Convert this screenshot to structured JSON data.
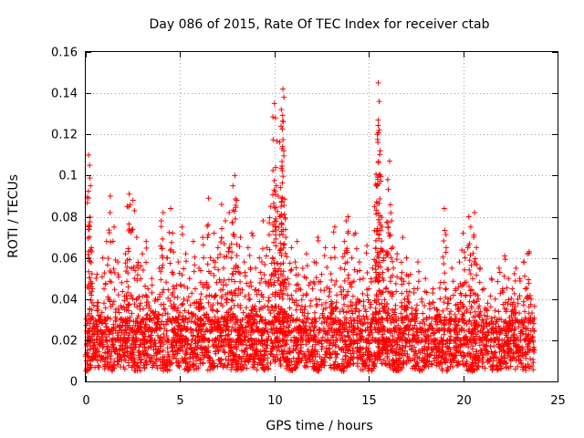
{
  "chart_data": {
    "type": "scatter",
    "title": "Day 086 of 2015, Rate Of TEC Index for receiver ctab",
    "xlabel": "GPS time / hours",
    "ylabel": "ROTI / TECUs",
    "xlim": [
      0,
      25
    ],
    "ylim": [
      0,
      0.16
    ],
    "xticks": [
      0,
      5,
      10,
      15,
      20,
      25
    ],
    "xtick_labels": [
      "0",
      "5",
      "10",
      "15",
      "20",
      "25"
    ],
    "yticks": [
      0,
      0.02,
      0.04,
      0.06,
      0.08,
      0.1,
      0.12,
      0.14,
      0.16
    ],
    "ytick_labels": [
      "0",
      "0.02",
      "0.04",
      "0.06",
      "0.08",
      "0.1",
      "0.12",
      "0.14",
      "0.16"
    ],
    "grid": true,
    "marker": "+",
    "color": "#ff0000",
    "series": [
      {
        "name": "ROTI",
        "points": [
          [
            0.05,
            0.01
          ],
          [
            0.1,
            0.032
          ],
          [
            0.15,
            0.11
          ],
          [
            0.2,
            0.105
          ],
          [
            0.25,
            0.095
          ],
          [
            0.3,
            0.065
          ],
          [
            0.35,
            0.045
          ],
          [
            0.4,
            0.028
          ],
          [
            0.5,
            0.015
          ],
          [
            0.6,
            0.052
          ],
          [
            0.7,
            0.03
          ],
          [
            0.8,
            0.018
          ],
          [
            0.9,
            0.06
          ],
          [
            1.0,
            0.024
          ],
          [
            1.1,
            0.068
          ],
          [
            1.2,
            0.04
          ],
          [
            1.3,
            0.09
          ],
          [
            1.4,
            0.02
          ],
          [
            1.5,
            0.075
          ],
          [
            1.6,
            0.035
          ],
          [
            1.7,
            0.058
          ],
          [
            1.8,
            0.015
          ],
          [
            1.9,
            0.048
          ],
          [
            2.0,
            0.03
          ],
          [
            2.1,
            0.062
          ],
          [
            2.2,
            0.085
          ],
          [
            2.3,
            0.091
          ],
          [
            2.4,
            0.042
          ],
          [
            2.5,
            0.088
          ],
          [
            2.6,
            0.025
          ],
          [
            2.7,
            0.07
          ],
          [
            2.8,
            0.055
          ],
          [
            2.9,
            0.038
          ],
          [
            3.0,
            0.062
          ],
          [
            3.1,
            0.022
          ],
          [
            3.2,
            0.068
          ],
          [
            3.3,
            0.045
          ],
          [
            3.4,
            0.03
          ],
          [
            3.5,
            0.05
          ],
          [
            3.6,
            0.018
          ],
          [
            3.7,
            0.04
          ],
          [
            3.8,
            0.026
          ],
          [
            3.9,
            0.055
          ],
          [
            4.0,
            0.078
          ],
          [
            4.1,
            0.082
          ],
          [
            4.2,
            0.035
          ],
          [
            4.3,
            0.06
          ],
          [
            4.4,
            0.02
          ],
          [
            4.5,
            0.084
          ],
          [
            4.6,
            0.072
          ],
          [
            4.7,
            0.045
          ],
          [
            4.8,
            0.03
          ],
          [
            4.9,
            0.058
          ],
          [
            5.0,
            0.025
          ],
          [
            5.1,
            0.075
          ],
          [
            5.2,
            0.04
          ],
          [
            5.3,
            0.062
          ],
          [
            5.4,
            0.018
          ],
          [
            5.5,
            0.05
          ],
          [
            5.6,
            0.033
          ],
          [
            5.7,
            0.068
          ],
          [
            5.8,
            0.045
          ],
          [
            5.9,
            0.022
          ],
          [
            6.0,
            0.055
          ],
          [
            6.1,
            0.038
          ],
          [
            6.2,
            0.07
          ],
          [
            6.3,
            0.028
          ],
          [
            6.4,
            0.048
          ],
          [
            6.5,
            0.089
          ],
          [
            6.6,
            0.06
          ],
          [
            6.7,
            0.035
          ],
          [
            6.8,
            0.072
          ],
          [
            6.9,
            0.042
          ],
          [
            7.0,
            0.065
          ],
          [
            7.1,
            0.025
          ],
          [
            7.2,
            0.086
          ],
          [
            7.3,
            0.055
          ],
          [
            7.4,
            0.078
          ],
          [
            7.5,
            0.04
          ],
          [
            7.6,
            0.082
          ],
          [
            7.7,
            0.06
          ],
          [
            7.8,
            0.095
          ],
          [
            7.9,
            0.1
          ],
          [
            8.0,
            0.088
          ],
          [
            8.1,
            0.045
          ],
          [
            8.2,
            0.07
          ],
          [
            8.3,
            0.03
          ],
          [
            8.4,
            0.058
          ],
          [
            8.5,
            0.022
          ],
          [
            8.6,
            0.065
          ],
          [
            8.7,
            0.04
          ],
          [
            8.8,
            0.072
          ],
          [
            8.9,
            0.035
          ],
          [
            9.0,
            0.055
          ],
          [
            9.1,
            0.025
          ],
          [
            9.2,
            0.06
          ],
          [
            9.3,
            0.042
          ],
          [
            9.4,
            0.078
          ],
          [
            9.5,
            0.03
          ],
          [
            9.6,
            0.065
          ],
          [
            9.7,
            0.048
          ],
          [
            9.8,
            0.085
          ],
          [
            9.9,
            0.06
          ],
          [
            10.0,
            0.135
          ],
          [
            10.05,
            0.128
          ],
          [
            10.1,
            0.095
          ],
          [
            10.2,
            0.09
          ],
          [
            10.3,
            0.08
          ],
          [
            10.35,
            0.124
          ],
          [
            10.4,
            0.113
          ],
          [
            10.45,
            0.142
          ],
          [
            10.5,
            0.138
          ],
          [
            10.6,
            0.07
          ],
          [
            10.7,
            0.05
          ],
          [
            10.8,
            0.04
          ],
          [
            10.9,
            0.065
          ],
          [
            11.0,
            0.03
          ],
          [
            11.1,
            0.058
          ],
          [
            11.2,
            0.068
          ],
          [
            11.3,
            0.045
          ],
          [
            11.4,
            0.025
          ],
          [
            11.5,
            0.055
          ],
          [
            11.6,
            0.035
          ],
          [
            11.7,
            0.062
          ],
          [
            11.8,
            0.02
          ],
          [
            11.9,
            0.048
          ],
          [
            12.0,
            0.03
          ],
          [
            12.1,
            0.058
          ],
          [
            12.2,
            0.04
          ],
          [
            12.3,
            0.07
          ],
          [
            12.4,
            0.025
          ],
          [
            12.5,
            0.052
          ],
          [
            12.6,
            0.035
          ],
          [
            12.7,
            0.065
          ],
          [
            12.8,
            0.02
          ],
          [
            12.9,
            0.045
          ],
          [
            13.0,
            0.06
          ],
          [
            13.1,
            0.03
          ],
          [
            13.2,
            0.075
          ],
          [
            13.3,
            0.042
          ],
          [
            13.4,
            0.025
          ],
          [
            13.5,
            0.055
          ],
          [
            13.6,
            0.035
          ],
          [
            13.7,
            0.068
          ],
          [
            13.8,
            0.078
          ],
          [
            13.9,
            0.08
          ],
          [
            14.0,
            0.048
          ],
          [
            14.1,
            0.06
          ],
          [
            14.2,
            0.03
          ],
          [
            14.3,
            0.072
          ],
          [
            14.4,
            0.04
          ],
          [
            14.5,
            0.058
          ],
          [
            14.6,
            0.022
          ],
          [
            14.7,
            0.05
          ],
          [
            14.8,
            0.035
          ],
          [
            14.9,
            0.066
          ],
          [
            15.0,
            0.045
          ],
          [
            15.1,
            0.028
          ],
          [
            15.2,
            0.055
          ],
          [
            15.3,
            0.085
          ],
          [
            15.4,
            0.095
          ],
          [
            15.45,
            0.12
          ],
          [
            15.5,
            0.145
          ],
          [
            15.55,
            0.136
          ],
          [
            15.6,
            0.112
          ],
          [
            15.7,
            0.075
          ],
          [
            15.8,
            0.06
          ],
          [
            15.9,
            0.045
          ],
          [
            16.0,
            0.098
          ],
          [
            16.1,
            0.107
          ],
          [
            16.2,
            0.078
          ],
          [
            16.3,
            0.055
          ],
          [
            16.4,
            0.035
          ],
          [
            16.5,
            0.062
          ],
          [
            16.6,
            0.025
          ],
          [
            16.7,
            0.05
          ],
          [
            16.8,
            0.07
          ],
          [
            16.9,
            0.04
          ],
          [
            17.0,
            0.06
          ],
          [
            17.1,
            0.03
          ],
          [
            17.2,
            0.052
          ],
          [
            17.3,
            0.02
          ],
          [
            17.4,
            0.045
          ],
          [
            17.5,
            0.035
          ],
          [
            17.6,
            0.058
          ],
          [
            17.7,
            0.025
          ],
          [
            17.8,
            0.04
          ],
          [
            17.9,
            0.03
          ],
          [
            18.0,
            0.05
          ],
          [
            18.1,
            0.022
          ],
          [
            18.2,
            0.038
          ],
          [
            18.3,
            0.028
          ],
          [
            18.4,
            0.045
          ],
          [
            18.5,
            0.018
          ],
          [
            18.6,
            0.035
          ],
          [
            18.7,
            0.025
          ],
          [
            18.8,
            0.048
          ],
          [
            18.9,
            0.02
          ],
          [
            19.0,
            0.084
          ],
          [
            19.1,
            0.065
          ],
          [
            19.2,
            0.04
          ],
          [
            19.3,
            0.03
          ],
          [
            19.4,
            0.055
          ],
          [
            19.5,
            0.025
          ],
          [
            19.6,
            0.045
          ],
          [
            19.7,
            0.035
          ],
          [
            19.8,
            0.058
          ],
          [
            19.9,
            0.042
          ],
          [
            20.0,
            0.072
          ],
          [
            20.1,
            0.06
          ],
          [
            20.2,
            0.035
          ],
          [
            20.3,
            0.08
          ],
          [
            20.4,
            0.075
          ],
          [
            20.5,
            0.05
          ],
          [
            20.6,
            0.082
          ],
          [
            20.7,
            0.065
          ],
          [
            20.8,
            0.04
          ],
          [
            20.9,
            0.055
          ],
          [
            21.0,
            0.03
          ],
          [
            21.1,
            0.045
          ],
          [
            21.2,
            0.022
          ],
          [
            21.3,
            0.038
          ],
          [
            21.4,
            0.028
          ],
          [
            21.5,
            0.05
          ],
          [
            21.6,
            0.02
          ],
          [
            21.7,
            0.04
          ],
          [
            21.8,
            0.03
          ],
          [
            21.9,
            0.055
          ],
          [
            22.0,
            0.025
          ],
          [
            22.1,
            0.045
          ],
          [
            22.2,
            0.061
          ],
          [
            22.3,
            0.035
          ],
          [
            22.4,
            0.05
          ],
          [
            22.5,
            0.028
          ],
          [
            22.6,
            0.045
          ],
          [
            22.7,
            0.035
          ],
          [
            22.8,
            0.055
          ],
          [
            22.9,
            0.04
          ],
          [
            23.0,
            0.05
          ],
          [
            23.1,
            0.03
          ],
          [
            23.2,
            0.058
          ],
          [
            23.3,
            0.045
          ],
          [
            23.4,
            0.062
          ],
          [
            23.5,
            0.063
          ],
          [
            23.6,
            0.04
          ],
          [
            23.7,
            0.03
          ]
        ]
      }
    ],
    "baseline_band": {
      "description": "dense cloud of points between roughly 0.005 and 0.03 across the whole day",
      "x_range": [
        0,
        23.8
      ],
      "y_range": [
        0.005,
        0.03
      ]
    }
  }
}
